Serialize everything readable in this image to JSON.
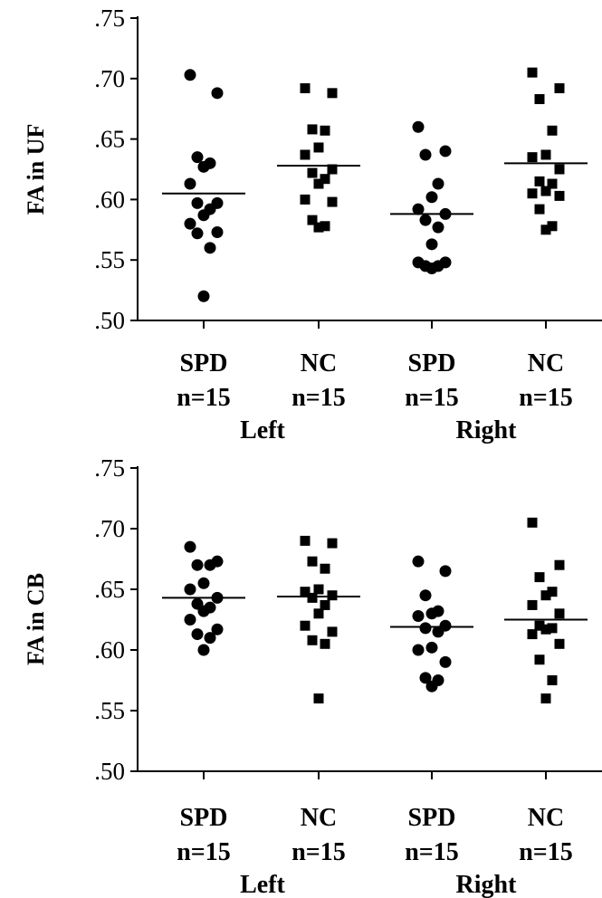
{
  "chart_data": [
    {
      "type": "scatter",
      "ylabel": "FA in UF",
      "ylim": [
        0.5,
        0.75
      ],
      "yticks": [
        {
          "value": 0.5,
          "label": ".50"
        },
        {
          "value": 0.55,
          "label": ".55"
        },
        {
          "value": 0.6,
          "label": ".60"
        },
        {
          "value": 0.65,
          "label": ".65"
        },
        {
          "value": 0.7,
          "label": ".70"
        },
        {
          "value": 0.75,
          "label": ".75"
        }
      ],
      "groups": [
        {
          "group": "SPD",
          "n": "n=15",
          "marker": "circle",
          "mean": 0.605,
          "values": [
            0.703,
            0.688,
            0.635,
            0.63,
            0.627,
            0.613,
            0.597,
            0.597,
            0.592,
            0.587,
            0.58,
            0.573,
            0.572,
            0.56,
            0.52
          ]
        },
        {
          "group": "NC",
          "n": "n=15",
          "marker": "square",
          "mean": 0.628,
          "values": [
            0.692,
            0.688,
            0.658,
            0.657,
            0.643,
            0.637,
            0.625,
            0.622,
            0.617,
            0.613,
            0.6,
            0.598,
            0.583,
            0.578,
            0.577
          ]
        },
        {
          "group": "SPD",
          "n": "n=15",
          "marker": "circle",
          "mean": 0.588,
          "values": [
            0.66,
            0.64,
            0.637,
            0.613,
            0.602,
            0.592,
            0.588,
            0.583,
            0.577,
            0.563,
            0.548,
            0.548,
            0.545,
            0.545,
            0.543
          ]
        },
        {
          "group": "NC",
          "n": "n=15",
          "marker": "square",
          "mean": 0.63,
          "values": [
            0.705,
            0.692,
            0.683,
            0.657,
            0.637,
            0.635,
            0.625,
            0.615,
            0.613,
            0.607,
            0.605,
            0.603,
            0.592,
            0.578,
            0.575
          ]
        }
      ],
      "sides": [
        "Left",
        "Right"
      ]
    },
    {
      "type": "scatter",
      "ylabel": "FA in CB",
      "ylim": [
        0.5,
        0.75
      ],
      "yticks": [
        {
          "value": 0.5,
          "label": ".50"
        },
        {
          "value": 0.55,
          "label": ".55"
        },
        {
          "value": 0.6,
          "label": ".60"
        },
        {
          "value": 0.65,
          "label": ".65"
        },
        {
          "value": 0.7,
          "label": ".70"
        },
        {
          "value": 0.75,
          "label": ".75"
        }
      ],
      "groups": [
        {
          "group": "SPD",
          "n": "n=15",
          "marker": "circle",
          "mean": 0.643,
          "values": [
            0.685,
            0.673,
            0.67,
            0.67,
            0.655,
            0.65,
            0.643,
            0.638,
            0.635,
            0.632,
            0.625,
            0.617,
            0.613,
            0.61,
            0.6
          ]
        },
        {
          "group": "NC",
          "n": "n=15",
          "marker": "square",
          "mean": 0.644,
          "values": [
            0.69,
            0.688,
            0.673,
            0.667,
            0.65,
            0.648,
            0.645,
            0.643,
            0.637,
            0.63,
            0.62,
            0.615,
            0.608,
            0.605,
            0.56
          ]
        },
        {
          "group": "SPD",
          "n": "n=15",
          "marker": "circle",
          "mean": 0.619,
          "values": [
            0.673,
            0.665,
            0.645,
            0.632,
            0.63,
            0.628,
            0.62,
            0.618,
            0.615,
            0.602,
            0.6,
            0.59,
            0.577,
            0.575,
            0.57
          ]
        },
        {
          "group": "NC",
          "n": "n=15",
          "marker": "square",
          "mean": 0.625,
          "values": [
            0.705,
            0.67,
            0.66,
            0.648,
            0.645,
            0.637,
            0.63,
            0.62,
            0.618,
            0.617,
            0.613,
            0.605,
            0.592,
            0.575,
            0.56
          ]
        }
      ],
      "sides": [
        "Left",
        "Right"
      ]
    }
  ]
}
